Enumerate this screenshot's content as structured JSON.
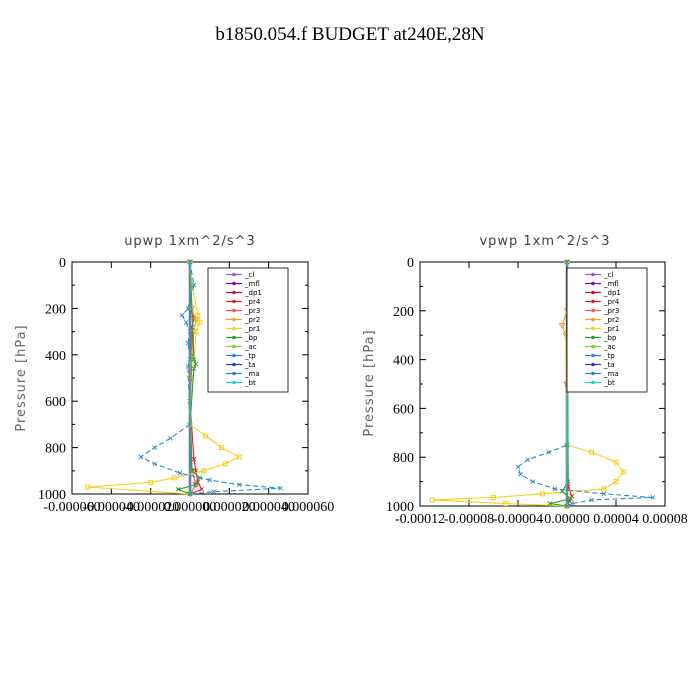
{
  "suptitle": "b1850.054.f  BUDGET at240E,28N",
  "chart_data": [
    {
      "type": "line",
      "title": "upwp   1xm^2/s^3",
      "ylabel": "Pressure [hPa]",
      "xlabel": "",
      "xlim": [
        -6e-05,
        6e-05
      ],
      "ylim": [
        1000,
        0
      ],
      "xtick_labels": [
        "-0.000060",
        "-0.000040",
        "-0.000020",
        "0.000000",
        "0.000020",
        "0.000040",
        "0.000060"
      ],
      "ytick_labels": [
        "0",
        "200",
        "400",
        "600",
        "800",
        "1000"
      ],
      "legend_position": "top-right",
      "series": [
        {
          "name": "_cl",
          "color": "#8a5cd6",
          "p": [
            0,
            500,
            1000
          ],
          "v": [
            0,
            0,
            0
          ]
        },
        {
          "name": "_mfl",
          "color": "#7a0aa0",
          "p": [
            0,
            500,
            1000
          ],
          "v": [
            0,
            0,
            0
          ]
        },
        {
          "name": "_dp1",
          "color": "#c0143c",
          "p": [
            0,
            500,
            1000
          ],
          "v": [
            0,
            0,
            0
          ]
        },
        {
          "name": "_pr4",
          "color": "#e02020",
          "p": [
            0,
            200,
            240,
            280,
            400,
            600,
            850,
            900,
            950,
            980,
            1000
          ],
          "v": [
            0,
            0,
            2e-06,
            1e-06,
            1e-06,
            0,
            2e-06,
            3e-06,
            4e-06,
            6e-06,
            0
          ]
        },
        {
          "name": "_pr3",
          "color": "#f05a5a",
          "p": [
            0,
            500,
            900,
            960,
            1000
          ],
          "v": [
            0,
            0,
            1e-06,
            3e-06,
            0
          ]
        },
        {
          "name": "_pr2",
          "color": "#f0a030",
          "p": [
            0,
            200,
            250,
            300,
            500,
            1000
          ],
          "v": [
            0,
            1e-06,
            3e-06,
            2e-06,
            0,
            0
          ]
        },
        {
          "name": "_pr1",
          "color": "#f5d020",
          "p": [
            0,
            100,
            230,
            260,
            300,
            700,
            750,
            800,
            840,
            870,
            900,
            930,
            950,
            970,
            1000
          ],
          "v": [
            0,
            1e-06,
            4e-06,
            5e-06,
            3e-06,
            0,
            8e-06,
            1.6e-05,
            2.5e-05,
            1.8e-05,
            7e-06,
            -8e-06,
            -2e-05,
            -5.2e-05,
            0
          ]
        },
        {
          "name": "_bp",
          "color": "#2aa02a",
          "p": [
            0,
            420,
            440,
            460,
            700,
            900,
            930,
            960,
            980,
            1000
          ],
          "v": [
            0,
            2e-06,
            3e-06,
            2e-06,
            0,
            1e-06,
            5e-06,
            3e-06,
            -6e-06,
            0
          ]
        },
        {
          "name": "_ac",
          "color": "#7ad040",
          "p": [
            0,
            1000
          ],
          "v": [
            0,
            0
          ]
        },
        {
          "name": "_tp",
          "color": "#2a8ac8",
          "p": [
            0,
            100,
            200,
            230,
            260,
            300,
            350,
            420,
            450,
            700,
            760,
            800,
            840,
            870,
            910,
            940,
            960,
            975,
            990,
            1000
          ],
          "v": [
            0,
            2e-06,
            -1e-06,
            -4e-06,
            -2e-06,
            0,
            -1e-06,
            0,
            -1e-06,
            0,
            -1e-05,
            -1.8e-05,
            -2.5e-05,
            -1.8e-05,
            -5e-06,
            1e-05,
            2.5e-05,
            4.6e-05,
            1.2e-05,
            0
          ]
        },
        {
          "name": "_ta",
          "color": "#2a3ad0",
          "p": [
            0,
            1000
          ],
          "v": [
            0,
            0
          ]
        },
        {
          "name": "_ma",
          "color": "#3a80b8",
          "p": [
            0,
            1000
          ],
          "v": [
            0,
            0
          ]
        },
        {
          "name": "_bt",
          "color": "#20d0d0",
          "p": [
            0,
            1000
          ],
          "v": [
            0,
            0
          ]
        }
      ]
    },
    {
      "type": "line",
      "title": "vpwp   1xm^2/s^3",
      "ylabel": "Pressure [hPa]",
      "xlabel": "",
      "xlim": [
        -0.00012,
        8e-05
      ],
      "ylim": [
        1000,
        0
      ],
      "xtick_labels": [
        "-0.00012",
        "-0.00008",
        "-0.00004",
        "0.00000",
        "0.00004",
        "0.00008"
      ],
      "ytick_labels": [
        "0",
        "200",
        "400",
        "600",
        "800",
        "1000"
      ],
      "legend_position": "top-right",
      "series": [
        {
          "name": "_cl",
          "color": "#8a5cd6",
          "p": [
            0,
            500,
            1000
          ],
          "v": [
            0,
            0,
            0
          ]
        },
        {
          "name": "_mfl",
          "color": "#7a0aa0",
          "p": [
            0,
            500,
            1000
          ],
          "v": [
            0,
            0,
            0
          ]
        },
        {
          "name": "_dp1",
          "color": "#c0143c",
          "p": [
            0,
            500,
            1000
          ],
          "v": [
            0,
            0,
            0
          ]
        },
        {
          "name": "_pr4",
          "color": "#e02020",
          "p": [
            0,
            500,
            920,
            960,
            980,
            1000
          ],
          "v": [
            0,
            0,
            1e-06,
            4e-06,
            2e-06,
            0
          ]
        },
        {
          "name": "_pr3",
          "color": "#f05a5a",
          "p": [
            0,
            500,
            1000
          ],
          "v": [
            0,
            0,
            0
          ]
        },
        {
          "name": "_pr2",
          "color": "#f0a030",
          "p": [
            0,
            200,
            260,
            300,
            1000
          ],
          "v": [
            0,
            0,
            -4e-06,
            -1e-06,
            0
          ]
        },
        {
          "name": "_pr1",
          "color": "#f5d020",
          "p": [
            0,
            750,
            780,
            820,
            860,
            900,
            930,
            950,
            965,
            975,
            990,
            1000
          ],
          "v": [
            0,
            0,
            2e-05,
            4e-05,
            4.6e-05,
            4e-05,
            3e-05,
            -2e-05,
            -6e-05,
            -0.00011,
            -5e-05,
            0
          ]
        },
        {
          "name": "_bp",
          "color": "#2aa02a",
          "p": [
            0,
            900,
            940,
            970,
            990,
            1000
          ],
          "v": [
            0,
            1e-06,
            -4e-06,
            3e-06,
            -1.4e-05,
            0
          ]
        },
        {
          "name": "_ac",
          "color": "#7ad040",
          "p": [
            0,
            1000
          ],
          "v": [
            0,
            0
          ]
        },
        {
          "name": "_tp",
          "color": "#2a8ac8",
          "p": [
            0,
            750,
            780,
            810,
            840,
            870,
            900,
            930,
            950,
            965,
            975,
            990,
            1000
          ],
          "v": [
            0,
            0,
            -1.5e-05,
            -3.2e-05,
            -4e-05,
            -3.8e-05,
            -2.8e-05,
            -1e-05,
            3e-05,
            7e-05,
            2e-05,
            4e-06,
            0
          ]
        },
        {
          "name": "_ta",
          "color": "#2a3ad0",
          "p": [
            0,
            1000
          ],
          "v": [
            0,
            0
          ]
        },
        {
          "name": "_ma",
          "color": "#3a80b8",
          "p": [
            0,
            1000
          ],
          "v": [
            0,
            0
          ]
        },
        {
          "name": "_bt",
          "color": "#20d0d0",
          "p": [
            0,
            1000
          ],
          "v": [
            0,
            0
          ]
        }
      ]
    }
  ]
}
